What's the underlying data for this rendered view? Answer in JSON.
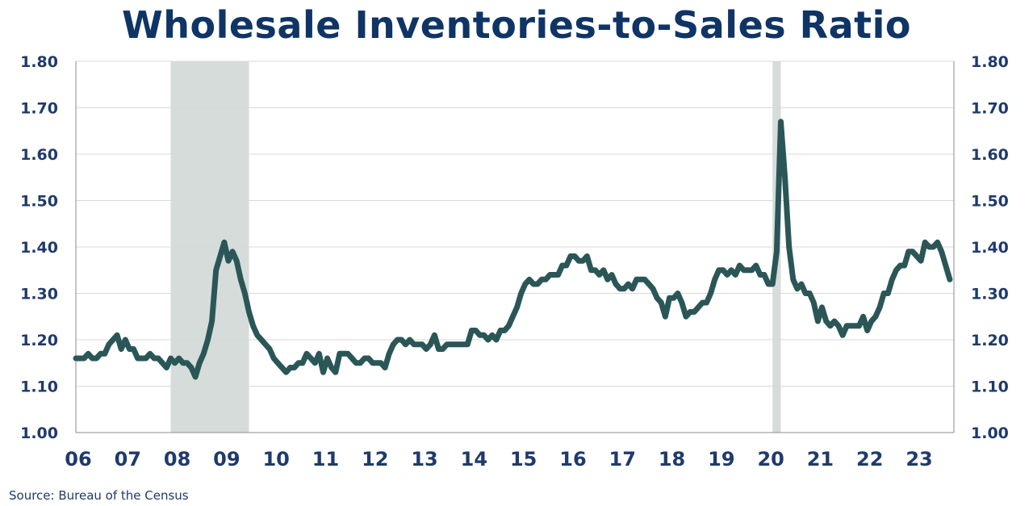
{
  "chart_data": {
    "type": "line",
    "title": "Wholesale Inventories-to-Sales Ratio",
    "source": "Source:  Bureau of the Census",
    "ylim": [
      1.0,
      1.8
    ],
    "yticks": [
      "1.00",
      "1.10",
      "1.20",
      "1.30",
      "1.40",
      "1.50",
      "1.60",
      "1.70",
      "1.80"
    ],
    "xlim": [
      2006.0,
      2023.75
    ],
    "xticks": [
      {
        "year": 2006,
        "label": "06"
      },
      {
        "year": 2007,
        "label": "07"
      },
      {
        "year": 2008,
        "label": "08"
      },
      {
        "year": 2009,
        "label": "09"
      },
      {
        "year": 2010,
        "label": "10"
      },
      {
        "year": 2011,
        "label": "11"
      },
      {
        "year": 2012,
        "label": "12"
      },
      {
        "year": 2013,
        "label": "13"
      },
      {
        "year": 2014,
        "label": "14"
      },
      {
        "year": 2015,
        "label": "15"
      },
      {
        "year": 2016,
        "label": "16"
      },
      {
        "year": 2017,
        "label": "17"
      },
      {
        "year": 2018,
        "label": "18"
      },
      {
        "year": 2019,
        "label": "19"
      },
      {
        "year": 2020,
        "label": "20"
      },
      {
        "year": 2021,
        "label": "21"
      },
      {
        "year": 2022,
        "label": "22"
      },
      {
        "year": 2023,
        "label": "23"
      }
    ],
    "grid": true,
    "recessions": [
      {
        "start": 2007.917,
        "end": 2009.5
      },
      {
        "start": 2020.083,
        "end": 2020.25
      }
    ],
    "colors": {
      "line": "#2b5657",
      "recession": "#d5dcda",
      "grid": "#d9d9d9",
      "axis": "#8c8c8c",
      "text": "#1f3a6b",
      "title": "#0f3466"
    },
    "series": [
      {
        "start": 2006.0,
        "step_months": 1,
        "values": [
          1.16,
          1.16,
          1.16,
          1.17,
          1.16,
          1.16,
          1.17,
          1.17,
          1.19,
          1.2,
          1.21,
          1.18,
          1.2,
          1.18,
          1.18,
          1.16,
          1.16,
          1.16,
          1.17,
          1.16,
          1.16,
          1.15,
          1.14,
          1.16,
          1.15,
          1.16,
          1.15,
          1.15,
          1.14,
          1.12,
          1.15,
          1.17,
          1.2,
          1.24,
          1.35,
          1.38,
          1.41,
          1.37,
          1.39,
          1.37,
          1.33,
          1.3,
          1.26,
          1.23,
          1.21,
          1.2,
          1.19,
          1.18,
          1.16,
          1.15,
          1.14,
          1.13,
          1.14,
          1.14,
          1.15,
          1.15,
          1.17,
          1.16,
          1.15,
          1.17,
          1.13,
          1.16,
          1.14,
          1.13,
          1.17,
          1.17,
          1.17,
          1.16,
          1.15,
          1.15,
          1.16,
          1.16,
          1.15,
          1.15,
          1.15,
          1.14,
          1.17,
          1.19,
          1.2,
          1.2,
          1.19,
          1.2,
          1.19,
          1.19,
          1.19,
          1.18,
          1.19,
          1.21,
          1.18,
          1.18,
          1.19,
          1.19,
          1.19,
          1.19,
          1.19,
          1.19,
          1.22,
          1.22,
          1.21,
          1.21,
          1.2,
          1.21,
          1.2,
          1.22,
          1.22,
          1.23,
          1.25,
          1.27,
          1.3,
          1.32,
          1.33,
          1.32,
          1.32,
          1.33,
          1.33,
          1.34,
          1.34,
          1.34,
          1.36,
          1.36,
          1.38,
          1.38,
          1.37,
          1.37,
          1.38,
          1.35,
          1.35,
          1.34,
          1.35,
          1.33,
          1.34,
          1.32,
          1.31,
          1.31,
          1.32,
          1.31,
          1.33,
          1.33,
          1.33,
          1.32,
          1.31,
          1.29,
          1.28,
          1.25,
          1.29,
          1.29,
          1.3,
          1.28,
          1.25,
          1.26,
          1.26,
          1.27,
          1.28,
          1.28,
          1.3,
          1.33,
          1.35,
          1.35,
          1.34,
          1.35,
          1.34,
          1.36,
          1.35,
          1.35,
          1.35,
          1.36,
          1.34,
          1.34,
          1.32,
          1.32,
          1.39,
          1.67,
          1.55,
          1.4,
          1.33,
          1.31,
          1.32,
          1.3,
          1.3,
          1.28,
          1.24,
          1.27,
          1.24,
          1.23,
          1.24,
          1.23,
          1.21,
          1.23,
          1.23,
          1.23,
          1.23,
          1.25,
          1.22,
          1.24,
          1.25,
          1.27,
          1.3,
          1.3,
          1.33,
          1.35,
          1.36,
          1.36,
          1.39,
          1.39,
          1.38,
          1.37,
          1.41,
          1.4,
          1.4,
          1.41,
          1.39,
          1.36,
          1.33
        ]
      }
    ]
  }
}
